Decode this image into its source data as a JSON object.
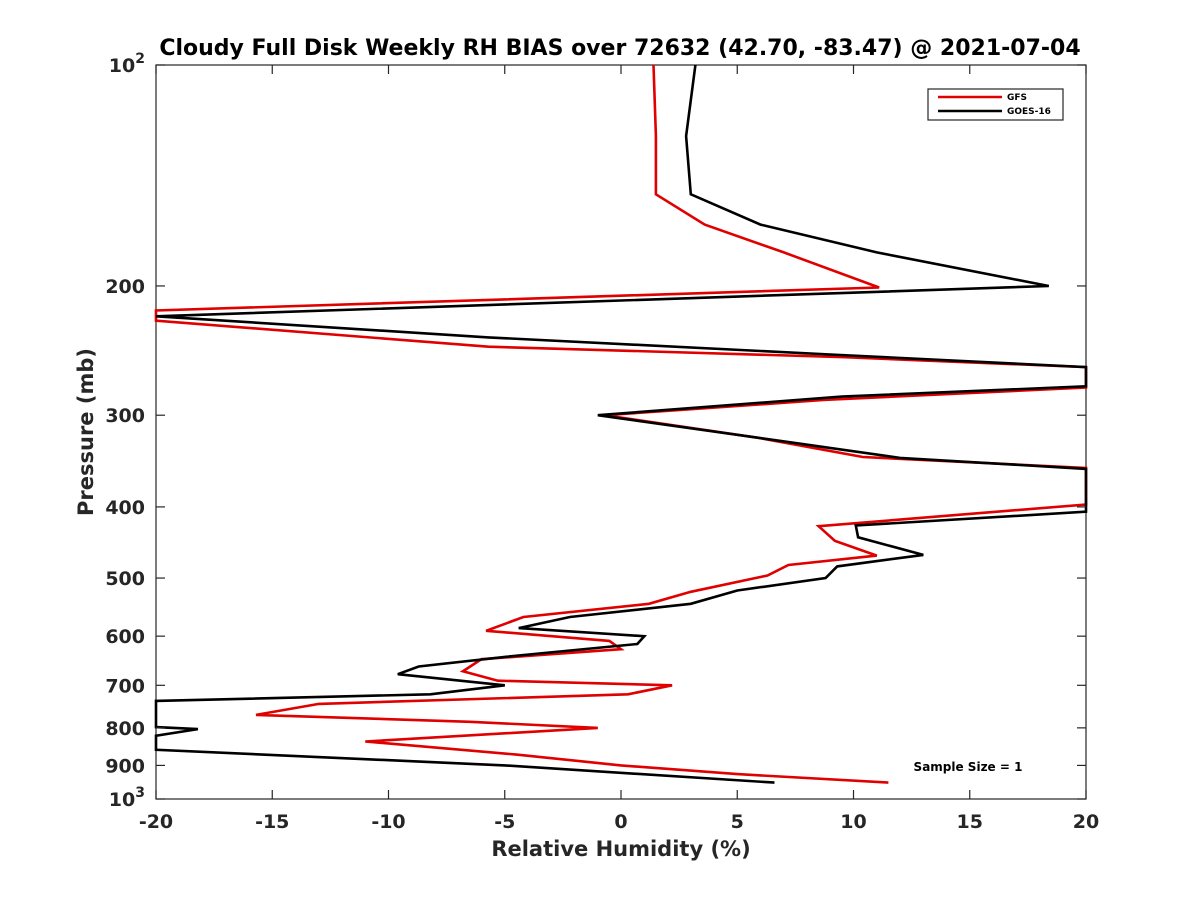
{
  "chart_data": {
    "type": "line",
    "title": "Cloudy Full Disk Weekly RH BIAS over 72632 (42.70, -83.47) @ 2021-07-04",
    "xlabel": "Relative Humidity (%)",
    "ylabel": "Pressure (mb)",
    "xlim": [
      -20,
      20
    ],
    "ylim": [
      100,
      1000
    ],
    "y_scale": "log",
    "y_reversed": true,
    "x_ticks": [
      -20,
      -15,
      -10,
      -5,
      0,
      5,
      10,
      15,
      20
    ],
    "x_tick_labels": [
      "-20",
      "-15",
      "-10",
      "-5",
      "0",
      "5",
      "10",
      "15",
      "20"
    ],
    "y_ticks": [
      100,
      200,
      300,
      400,
      500,
      600,
      700,
      800,
      900,
      1000
    ],
    "y_tick_labels": [
      {
        "base": "10",
        "exp": "2"
      },
      {
        "base": "200",
        "exp": ""
      },
      {
        "base": "300",
        "exp": ""
      },
      {
        "base": "400",
        "exp": ""
      },
      {
        "base": "500",
        "exp": ""
      },
      {
        "base": "600",
        "exp": ""
      },
      {
        "base": "700",
        "exp": ""
      },
      {
        "base": "800",
        "exp": ""
      },
      {
        "base": "900",
        "exp": ""
      },
      {
        "base": "10",
        "exp": "3"
      }
    ],
    "grid": false,
    "legend_position": "top-right",
    "annotation": "Sample Size = 1",
    "series": [
      {
        "name": "GFS",
        "color": "#e00000",
        "points": [
          [
            1.4,
            100
          ],
          [
            1.5,
            125
          ],
          [
            1.5,
            150
          ],
          [
            3.6,
            165
          ],
          [
            7.0,
            180
          ],
          [
            11.1,
            201
          ],
          [
            -20.0,
            216
          ],
          [
            -20.0,
            223
          ],
          [
            -5.7,
            242
          ],
          [
            9.5,
            250
          ],
          [
            20.0,
            258
          ],
          [
            20.0,
            275
          ],
          [
            8.7,
            286
          ],
          [
            -0.7,
            300
          ],
          [
            5.9,
            322
          ],
          [
            10.4,
            342
          ],
          [
            20.0,
            354
          ],
          [
            20.0,
            397
          ],
          [
            8.5,
            425
          ],
          [
            9.2,
            445
          ],
          [
            11.0,
            466
          ],
          [
            7.2,
            480
          ],
          [
            6.3,
            496
          ],
          [
            3.0,
            522
          ],
          [
            1.2,
            542
          ],
          [
            -4.2,
            565
          ],
          [
            -5.8,
            590
          ],
          [
            -0.5,
            609
          ],
          [
            0.0,
            625
          ],
          [
            -6.0,
            645
          ],
          [
            -6.8,
            670
          ],
          [
            -5.3,
            690
          ],
          [
            2.2,
            700
          ],
          [
            0.3,
            720
          ],
          [
            -13.0,
            742
          ],
          [
            -15.7,
            768
          ],
          [
            -6.5,
            785
          ],
          [
            -1.0,
            800
          ],
          [
            -11.0,
            835
          ],
          [
            -4.5,
            870
          ],
          [
            0.0,
            900
          ],
          [
            5.0,
            925
          ],
          [
            11.5,
            950
          ]
        ]
      },
      {
        "name": "GOES-16",
        "color": "#000000",
        "points": [
          [
            3.2,
            100
          ],
          [
            2.8,
            125
          ],
          [
            3.0,
            150
          ],
          [
            6.0,
            165
          ],
          [
            11.0,
            180
          ],
          [
            18.4,
            200
          ],
          [
            -20.0,
            220
          ],
          [
            -5.7,
            235
          ],
          [
            9.0,
            248
          ],
          [
            20.0,
            258
          ],
          [
            20.0,
            274
          ],
          [
            9.5,
            283
          ],
          [
            -1.0,
            300
          ],
          [
            7.7,
            328
          ],
          [
            12.0,
            343
          ],
          [
            20.0,
            355
          ],
          [
            20.0,
            406
          ],
          [
            10.1,
            424
          ],
          [
            10.2,
            440
          ],
          [
            13.0,
            465
          ],
          [
            9.3,
            482
          ],
          [
            8.8,
            500
          ],
          [
            5.0,
            520
          ],
          [
            3.0,
            542
          ],
          [
            -2.2,
            565
          ],
          [
            -4.4,
            585
          ],
          [
            1.0,
            600
          ],
          [
            0.7,
            615
          ],
          [
            -4.9,
            640
          ],
          [
            -8.7,
            660
          ],
          [
            -9.6,
            676
          ],
          [
            -5.0,
            700
          ],
          [
            -8.2,
            720
          ],
          [
            -20.0,
            735
          ],
          [
            -20.0,
            798
          ],
          [
            -18.2,
            803
          ],
          [
            -20.0,
            820
          ],
          [
            -20.0,
            857
          ],
          [
            -5.0,
            900
          ],
          [
            6.6,
            950
          ]
        ]
      }
    ]
  }
}
